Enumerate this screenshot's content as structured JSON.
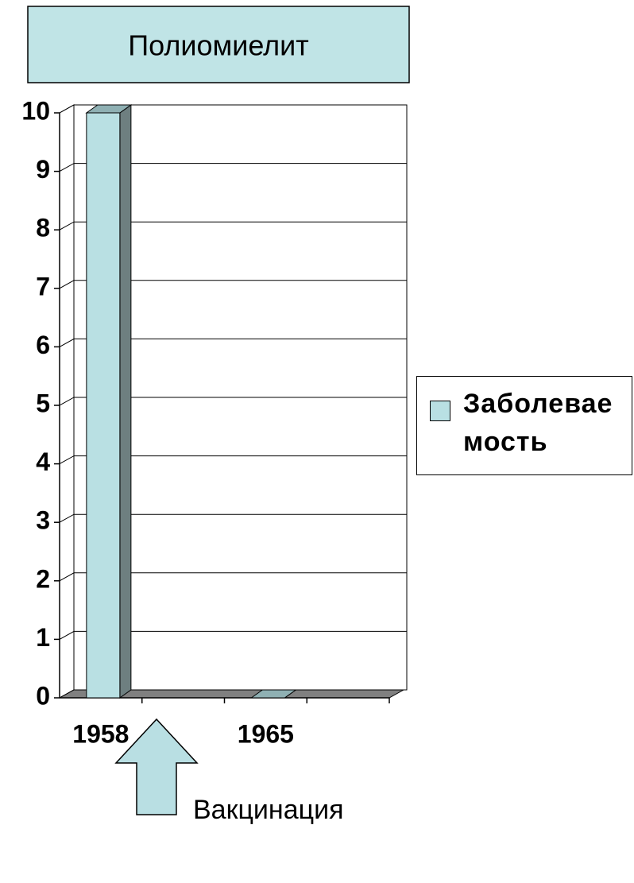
{
  "chart_data": {
    "type": "bar",
    "title": "Полиомиелит",
    "categories": [
      "1958",
      null,
      "1965",
      null
    ],
    "series": [
      {
        "name": "Заболеваемость",
        "color": "#b9e0e3",
        "values": [
          10,
          null,
          0,
          null
        ]
      }
    ],
    "ylim": [
      0,
      10
    ],
    "yticks": [
      0,
      1,
      2,
      3,
      4,
      5,
      6,
      7,
      8,
      9,
      10
    ],
    "grid": true,
    "annotations": [
      "Вакцинация"
    ]
  }
}
